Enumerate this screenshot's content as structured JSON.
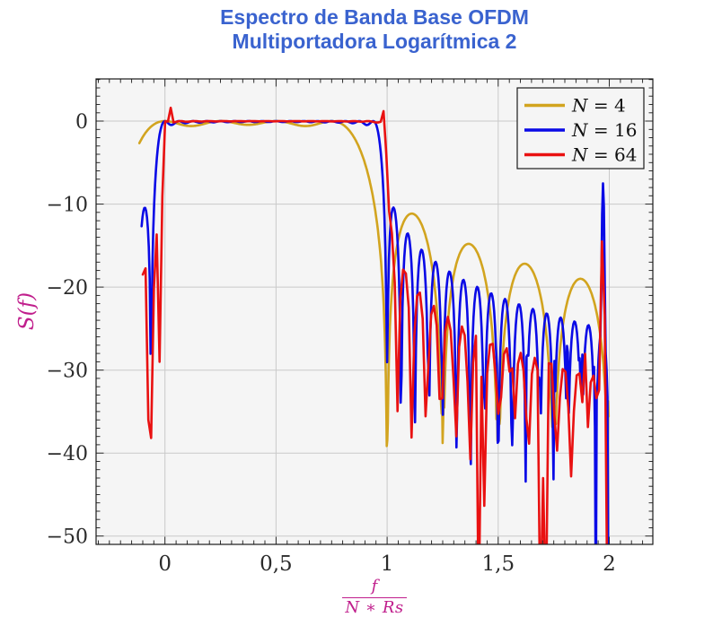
{
  "chart_data": {
    "type": "line",
    "title_lines": [
      "Espectro de Banda Base OFDM",
      "Multiportadora Logarítmica 2"
    ],
    "title_color": "#3A63CF",
    "ylabel": "S(f)",
    "xlabel_numerator": "f",
    "xlabel_denominator": "N ∗ Rs",
    "axis_label_color": "#C01E8C",
    "tick_label_color": "#2B2B2B",
    "xlim": [
      -0.31,
      2.196
    ],
    "ylim": [
      -51,
      5.08
    ],
    "xticks": [
      0,
      0.5,
      1,
      1.5,
      2
    ],
    "xtick_labels": [
      "0",
      "0,5",
      "1",
      "1,5",
      "2"
    ],
    "yticks": [
      0,
      -10,
      -20,
      -30,
      -40,
      -50
    ],
    "ytick_labels": [
      "0",
      "−10",
      "−20",
      "−30",
      "−40",
      "−50"
    ],
    "x_minor_step": 0.05,
    "y_minor_step": 1,
    "grid": true,
    "plot_bg": "#F5F5F5",
    "grid_color": "#C9C9C9",
    "frame_color": "#1A1A1A",
    "legend": {
      "position": "top-right"
    },
    "model": "S(x) = 10*log10( sum_{k=0..N-1} sinc^2(N*x - k) ), x = f/(N*Rs), passband 0..1 at 0 dB, sidelobe humps decaying from -11 dB past x=1, all curves end at x=2",
    "series": [
      {
        "label": "N = 4",
        "N": 4,
        "color": "#D2A41F",
        "x_start": -0.115,
        "x_end": 1.997,
        "samples": 900,
        "null_floor_db": [
          -33,
          -40
        ],
        "features": []
      },
      {
        "label": "N = 16",
        "N": 16,
        "color": "#0A0AE6",
        "x_start": -0.105,
        "x_end": 1.996,
        "samples": 520,
        "null_floor_db": [
          -27,
          -45
        ],
        "features": [
          {
            "type": "spike",
            "x": 1.972,
            "peak": -7.5,
            "w": 0.00224
          },
          {
            "type": "notch",
            "x": 1.938,
            "level": -60
          },
          {
            "type": "notch",
            "x": 1.996,
            "level": -60
          }
        ]
      },
      {
        "label": "N = 64",
        "N": 64,
        "color": "#E91111",
        "x_start": -0.1,
        "x_end": 1.992,
        "samples": 167,
        "null_floor_db": [
          -28,
          -48
        ],
        "features": [
          {
            "type": "notch",
            "x": -0.077,
            "level": -36
          },
          {
            "type": "notch",
            "x": -0.02,
            "level": -29
          },
          {
            "type": "spike",
            "x": 0.02,
            "peak": 1.6,
            "w": 0.005
          },
          {
            "type": "spike",
            "x": 0.985,
            "peak": 1.2,
            "w": 0.005
          },
          {
            "type": "spike",
            "x": 1.969,
            "peak": -14.5,
            "w": 0.0035
          },
          {
            "type": "notch",
            "x": 1.408,
            "level": -60
          },
          {
            "type": "notch",
            "x": 1.69,
            "level": -60
          },
          {
            "type": "notch",
            "x": 1.715,
            "level": -60
          },
          {
            "type": "notch",
            "x": 1.992,
            "level": -60
          }
        ]
      }
    ]
  }
}
